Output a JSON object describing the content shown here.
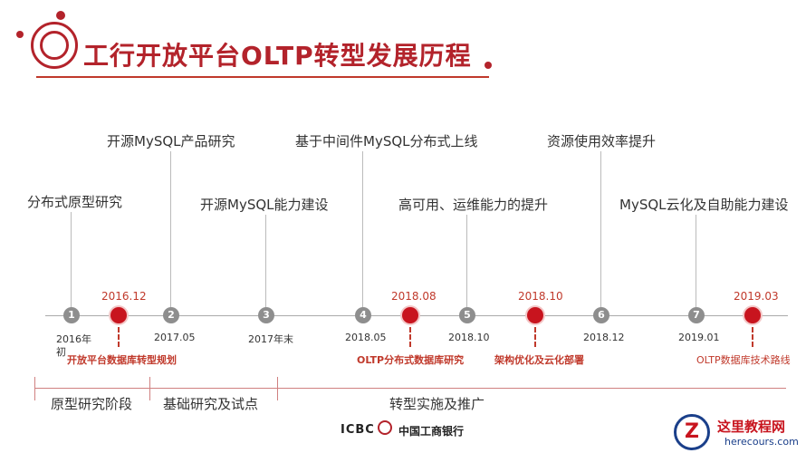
{
  "header": {
    "title": "工行开放平台OLTP转型发展历程"
  },
  "milestones": [
    "分布式原型研究",
    "开源MySQL产品研究",
    "开源MySQL能力建设",
    "基于中间件MySQL分布式上线",
    "高可用、运维能力的提升",
    "资源使用效率提升",
    "MySQL云化及自助能力建设"
  ],
  "nodes": [
    "1",
    "2",
    "3",
    "4",
    "5",
    "6",
    "7"
  ],
  "dates": {
    "d1a": "2016年",
    "d1b": "初",
    "d2": "2017.05",
    "d3": "2017年末",
    "d4": "2018.05",
    "d5": "2018.10",
    "d6": "2018.12",
    "d7": "2019.01"
  },
  "red_events": [
    {
      "date": "2016.12",
      "text": "开放平台数据库转型规划"
    },
    {
      "date": "2018.08",
      "text": "OLTP分布式数据库研究"
    },
    {
      "date": "2018.10",
      "text": "架构优化及云化部署"
    },
    {
      "date": "2019.03",
      "text": "OLTP数据库技术路线"
    }
  ],
  "phases": [
    "原型研究阶段",
    "基础研究及试点",
    "转型实施及推广"
  ],
  "footer": {
    "icbc": "ICBC",
    "bank_name": "中国工商银行"
  },
  "watermark": {
    "letter": "Z",
    "name": "这里教程网",
    "url": "herecours.com"
  },
  "colors": {
    "brand_red": "#b3232b",
    "node_red": "#c8141e",
    "node_gray": "#8e8e8e"
  }
}
